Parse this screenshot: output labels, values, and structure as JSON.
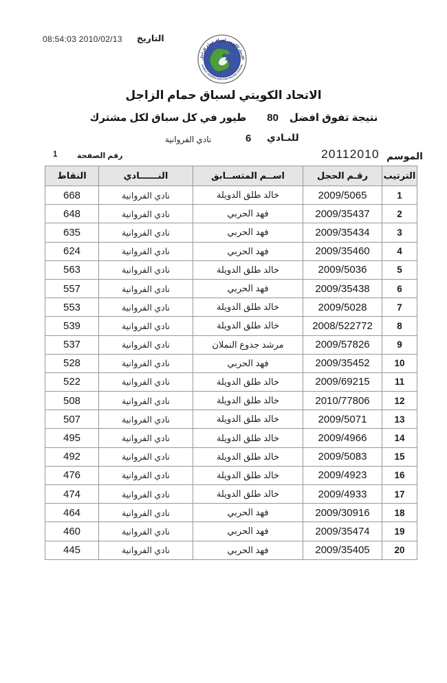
{
  "header": {
    "date_label": "التاريخ",
    "date_value": "08:54:03 2010/02/13",
    "title": "الاتحاد الكويتي لسباق حمام الزاجل",
    "subtitle_right": "نتيجة تفوق  افضل",
    "subtitle_number": "80",
    "subtitle_left": "طيور في كل سباق لكل مشترك",
    "club_label": "للنـادي",
    "club_number": "6",
    "club_name": "نادي الفروانية",
    "season_label": "الموسم",
    "season_value": "20112010",
    "page_label": "رقم الصفحة",
    "page_number": "1"
  },
  "logo": {
    "arabic_arc_text": "الاتحاد الكويتي لسباق حمام الزاجل",
    "english_arc_text": "KUWAIT FEDERATION FOR RACING PIGEON",
    "ring_color": "#3a54a6",
    "map_color": "#4f9d3c",
    "text_color": "#1c2a66"
  },
  "table": {
    "headers": {
      "rank": "الترتيب",
      "ring": "رقـم الحجل",
      "name": "اســم المتســابق",
      "club": "النــــــادي",
      "points": "النقاط"
    },
    "rows": [
      {
        "rank": "1",
        "ring": "2009/5065",
        "name": "خالد طلق الدويلة",
        "club": "نادي الفروانية",
        "points": "668"
      },
      {
        "rank": "2",
        "ring": "2009/35437",
        "name": "فهد الحربي",
        "club": "نادي الفروانية",
        "points": "648"
      },
      {
        "rank": "3",
        "ring": "2009/35434",
        "name": "فهد الحربي",
        "club": "نادي الفروانية",
        "points": "635"
      },
      {
        "rank": "4",
        "ring": "2009/35460",
        "name": "فهد الحربي",
        "club": "نادي الفروانية",
        "points": "624"
      },
      {
        "rank": "5",
        "ring": "2009/5036",
        "name": "خالد طلق الدويلة",
        "club": "نادي الفروانية",
        "points": "563"
      },
      {
        "rank": "6",
        "ring": "2009/35438",
        "name": "فهد الحربي",
        "club": "نادي الفروانية",
        "points": "557"
      },
      {
        "rank": "7",
        "ring": "2009/5028",
        "name": "خالد طلق الدويلة",
        "club": "نادي الفروانية",
        "points": "553"
      },
      {
        "rank": "8",
        "ring": "2008/522772",
        "name": "خالد طلق الدويلة",
        "club": "نادي الفروانية",
        "points": "539"
      },
      {
        "rank": "9",
        "ring": "2009/57826",
        "name": "مرشد جدوع النملان",
        "club": "نادي الفروانية",
        "points": "537"
      },
      {
        "rank": "10",
        "ring": "2009/35452",
        "name": "فهد الحربي",
        "club": "نادي الفروانية",
        "points": "528"
      },
      {
        "rank": "11",
        "ring": "2009/69215",
        "name": "خالد طلق الدويلة",
        "club": "نادي الفروانية",
        "points": "522"
      },
      {
        "rank": "12",
        "ring": "2010/77806",
        "name": "خالد طلق الدويلة",
        "club": "نادي الفروانية",
        "points": "508"
      },
      {
        "rank": "13",
        "ring": "2009/5071",
        "name": "خالد طلق الدويلة",
        "club": "نادي الفروانية",
        "points": "507"
      },
      {
        "rank": "14",
        "ring": "2009/4966",
        "name": "خالد طلق الدويلة",
        "club": "نادي الفروانية",
        "points": "495"
      },
      {
        "rank": "15",
        "ring": "2009/5083",
        "name": "خالد طلق الدويلة",
        "club": "نادي الفروانية",
        "points": "492"
      },
      {
        "rank": "16",
        "ring": "2009/4923",
        "name": "خالد طلق الدويلة",
        "club": "نادي الفروانية",
        "points": "476"
      },
      {
        "rank": "17",
        "ring": "2009/4933",
        "name": "خالد طلق الدويلة",
        "club": "نادي الفروانية",
        "points": "474"
      },
      {
        "rank": "18",
        "ring": "2009/30916",
        "name": "فهد الحربي",
        "club": "نادي الفروانية",
        "points": "464"
      },
      {
        "rank": "19",
        "ring": "2009/35474",
        "name": "فهد الحربي",
        "club": "نادي الفروانية",
        "points": "460"
      },
      {
        "rank": "20",
        "ring": "2009/35405",
        "name": "فهد الحربي",
        "club": "نادي الفروانية",
        "points": "445"
      }
    ]
  }
}
